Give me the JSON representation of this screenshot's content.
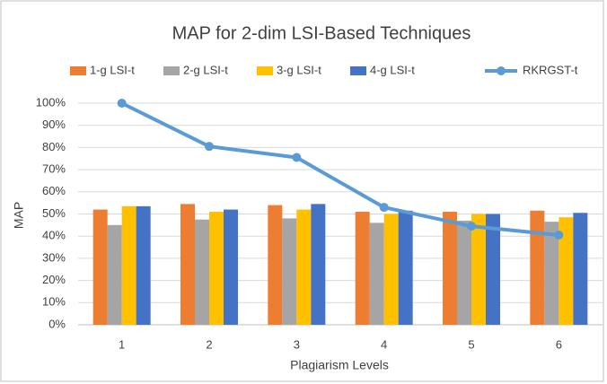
{
  "chart_data": {
    "type": "bar",
    "title": "MAP for 2-dim LSI-Based Techniques",
    "x_label": "Plagiarism Levels",
    "y_label": "MAP",
    "categories": [
      "1",
      "2",
      "3",
      "4",
      "5",
      "6"
    ],
    "series": [
      {
        "name": "1-g LSI-t",
        "color": "#ed7d31",
        "values": [
          52,
          54.5,
          54,
          51,
          51,
          51.5
        ]
      },
      {
        "name": "2-g LSI-t",
        "color": "#a5a5a5",
        "values": [
          45,
          47.5,
          48,
          46,
          47,
          46.5
        ]
      },
      {
        "name": "3-g LSI-t",
        "color": "#ffc000",
        "values": [
          53.5,
          51,
          52,
          50,
          50,
          48.5
        ]
      },
      {
        "name": "4-g LSI-t",
        "color": "#4472c4",
        "values": [
          53.5,
          52,
          54.5,
          51.5,
          50,
          50.5
        ]
      },
      {
        "name": "RKRGST-t",
        "color": "#5b9bd5",
        "type": "line",
        "values": [
          100,
          80.5,
          75.5,
          53,
          44.5,
          40.5
        ]
      }
    ],
    "ylim": [
      0,
      100
    ],
    "yticks": [
      {
        "value": 0,
        "label": "0%"
      },
      {
        "value": 10,
        "label": "10%"
      },
      {
        "value": 20,
        "label": "20%"
      },
      {
        "value": 30,
        "label": "30%"
      },
      {
        "value": 40,
        "label": "40%"
      },
      {
        "value": 50,
        "label": "50%"
      },
      {
        "value": 60,
        "label": "60%"
      },
      {
        "value": 70,
        "label": "70%"
      },
      {
        "value": 80,
        "label": "80%"
      },
      {
        "value": 90,
        "label": "90%"
      },
      {
        "value": 100,
        "label": "100%"
      }
    ],
    "grid": true,
    "legend": "top"
  }
}
